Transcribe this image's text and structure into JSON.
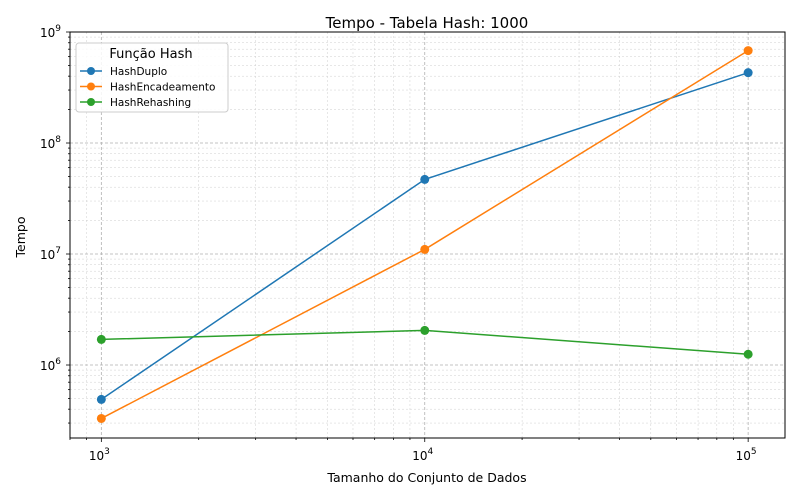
{
  "chart_data": {
    "type": "line",
    "title": "Tempo - Tabela Hash: 1000",
    "xlabel": "Tamanho do Conjunto de Dados",
    "ylabel": "Tempo",
    "xscale": "log",
    "yscale": "log",
    "xlim": [
      800,
      130000
    ],
    "ylim": [
      220000,
      1000000000
    ],
    "x": [
      1000,
      10000,
      100000
    ],
    "x_ticks": [
      {
        "value": 1000,
        "base": "10",
        "exp": "3"
      },
      {
        "value": 10000,
        "base": "10",
        "exp": "4"
      },
      {
        "value": 100000,
        "base": "10",
        "exp": "5"
      }
    ],
    "y_ticks": [
      {
        "value": 1000000,
        "base": "10",
        "exp": "6"
      },
      {
        "value": 10000000,
        "base": "10",
        "exp": "7"
      },
      {
        "value": 100000000,
        "base": "10",
        "exp": "8"
      },
      {
        "value": 1000000000,
        "base": "10",
        "exp": "9"
      }
    ],
    "grid": true,
    "legend": {
      "title": "Função Hash",
      "placement": "top-left"
    },
    "series": [
      {
        "name": "HashDuplo",
        "color": "#1f77b4",
        "values": [
          490000,
          47000000,
          430000000
        ]
      },
      {
        "name": "HashEncadeamento",
        "color": "#ff7f0e",
        "values": [
          330000,
          11000000,
          680000000
        ]
      },
      {
        "name": "HashRehashing",
        "color": "#2ca02c",
        "values": [
          1700000,
          2050000,
          1250000
        ]
      }
    ]
  }
}
